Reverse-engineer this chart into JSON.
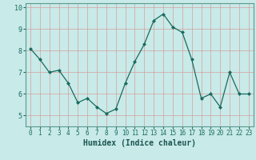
{
  "x": [
    0,
    1,
    2,
    3,
    4,
    5,
    6,
    7,
    8,
    9,
    10,
    11,
    12,
    13,
    14,
    15,
    16,
    17,
    18,
    19,
    20,
    21,
    22,
    23
  ],
  "y": [
    8.1,
    7.6,
    7.0,
    7.1,
    6.5,
    5.6,
    5.8,
    5.4,
    5.1,
    5.3,
    6.5,
    7.5,
    8.3,
    9.4,
    9.7,
    9.1,
    8.85,
    7.6,
    5.8,
    6.0,
    5.4,
    7.0,
    6.0,
    6.0
  ],
  "xlabel": "Humidex (Indice chaleur)",
  "ylim": [
    4.5,
    10.2
  ],
  "xlim": [
    -0.5,
    23.5
  ],
  "yticks": [
    5,
    6,
    7,
    8,
    9,
    10
  ],
  "xticks": [
    0,
    1,
    2,
    3,
    4,
    5,
    6,
    7,
    8,
    9,
    10,
    11,
    12,
    13,
    14,
    15,
    16,
    17,
    18,
    19,
    20,
    21,
    22,
    23
  ],
  "line_color": "#1a6b5e",
  "marker_color": "#1a6b5e",
  "bg_color": "#c8eae8",
  "grid_color_v": "#d4a0a0",
  "grid_color_h": "#d4a0a0",
  "axis_bg": "#c8eae8",
  "tick_color": "#1a6b5e",
  "xlabel_color": "#1a5550",
  "xlabel_fontsize": 7,
  "tick_fontsize": 5.5,
  "ytick_fontsize": 6
}
